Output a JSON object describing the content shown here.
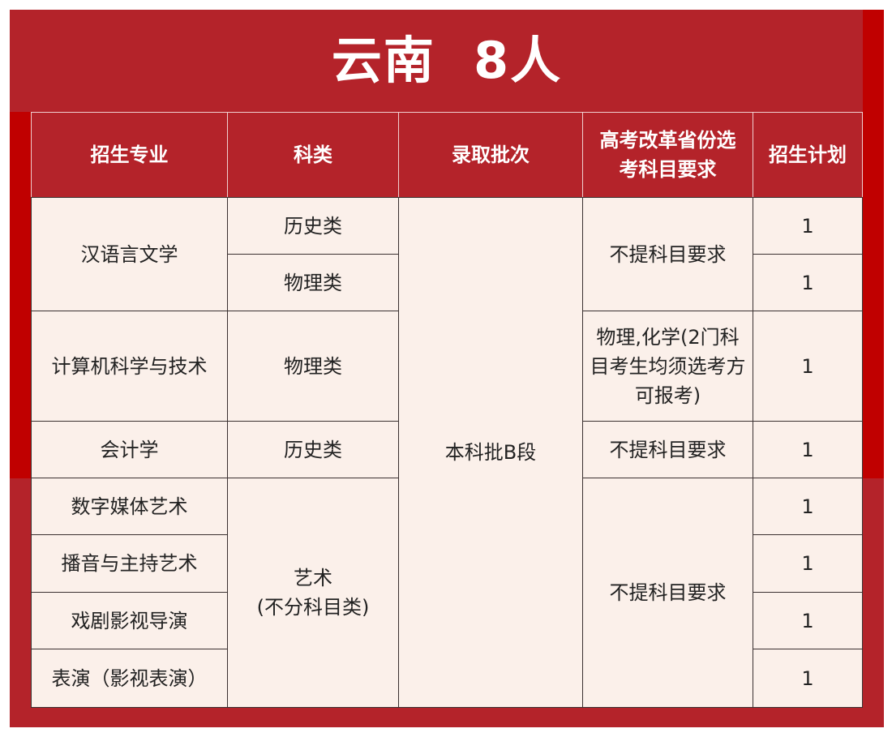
{
  "title": "云南  8人",
  "colors": {
    "frame": "#b4232a",
    "accent_strip": "#c00000",
    "cell_background": "#fbf0ea"
  },
  "headers": [
    "招生专业",
    "科类",
    "录取批次",
    "高考改革省份选考科目要求",
    "招生计划"
  ],
  "majors": [
    "汉语言文学",
    "计算机科学与技术",
    "会计学",
    "数字媒体艺术",
    "播音与主持艺术",
    "戏剧影视导演",
    "表演（影视表演）"
  ],
  "categories": [
    "历史类",
    "物理类",
    "物理类",
    "历史类",
    "艺术\n(不分科目类)"
  ],
  "batch": "本科批B段",
  "requirements": [
    "不提科目要求",
    "物理,化学(2门科目考生均须选考方可报考)",
    "不提科目要求",
    "不提科目要求"
  ],
  "plans": [
    "1",
    "1",
    "1",
    "1",
    "1",
    "1",
    "1",
    "1"
  ]
}
